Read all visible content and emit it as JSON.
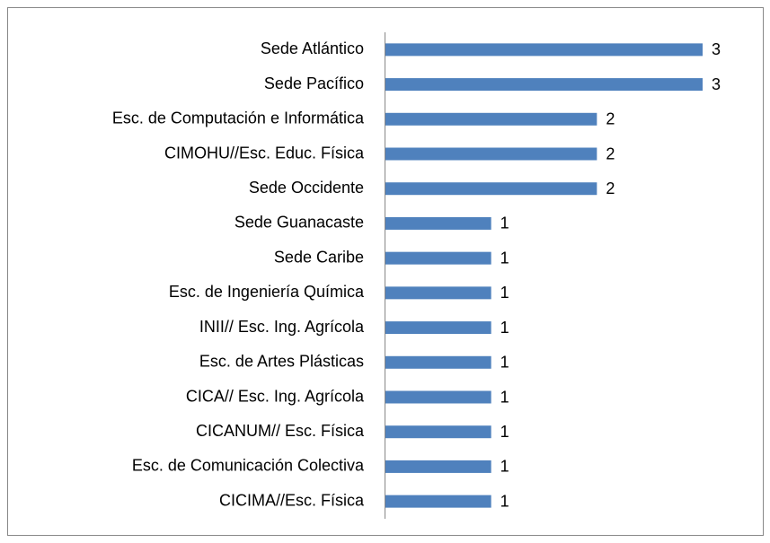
{
  "chart_data": {
    "type": "bar",
    "orientation": "horizontal",
    "categories": [
      "Sede Atlántico",
      "Sede Pacífico",
      "Esc. de Computación e Informática",
      "CIMOHU//Esc. Educ. Física",
      "Sede Occidente",
      "Sede Guanacaste",
      "Sede Caribe",
      "Esc. de Ingeniería Química",
      "INII// Esc. Ing. Agrícola",
      "Esc. de Artes Plásticas",
      "CICA// Esc. Ing. Agrícola",
      "CICANUM// Esc. Física",
      "Esc. de Comunicación Colectiva",
      "CICIMA//Esc. Física"
    ],
    "values": [
      3,
      3,
      2,
      2,
      2,
      1,
      1,
      1,
      1,
      1,
      1,
      1,
      1,
      1
    ],
    "color": "#4f81bd"
  }
}
